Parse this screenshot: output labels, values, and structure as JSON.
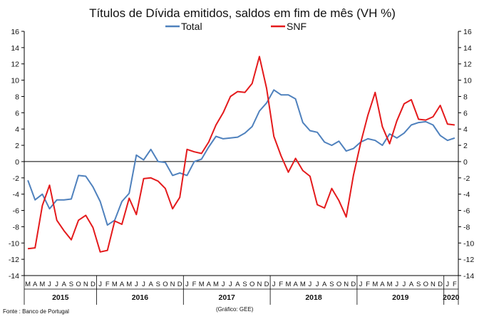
{
  "chart_data": {
    "type": "line",
    "title": "Títulos de Dívida emitidos, saldos em fim de mês  (VH %)",
    "legend_position": "top",
    "ylim": [
      -14,
      16
    ],
    "yticks": [
      -14,
      -12,
      -10,
      -8,
      -6,
      -4,
      -2,
      0,
      2,
      4,
      6,
      8,
      10,
      12,
      14,
      16
    ],
    "y_axes": "both",
    "grid": false,
    "year_groups": [
      {
        "label": "2015",
        "count": 10
      },
      {
        "label": "2016",
        "count": 12
      },
      {
        "label": "2017",
        "count": 12
      },
      {
        "label": "2018",
        "count": 12
      },
      {
        "label": "2019",
        "count": 12
      },
      {
        "label": "2020",
        "count": 2
      }
    ],
    "month_labels": [
      "M",
      "A",
      "M",
      "J",
      "J",
      "A",
      "S",
      "O",
      "N",
      "D",
      "J",
      "F",
      "M",
      "A",
      "M",
      "J",
      "J",
      "A",
      "S",
      "O",
      "N",
      "D",
      "J",
      "F",
      "M",
      "A",
      "M",
      "J",
      "J",
      "A",
      "S",
      "O",
      "N",
      "D",
      "J",
      "F",
      "M",
      "A",
      "M",
      "J",
      "J",
      "A",
      "S",
      "O",
      "N",
      "D",
      "J",
      "F",
      "M",
      "A",
      "M",
      "J",
      "J",
      "A",
      "S",
      "O",
      "N",
      "D",
      "J",
      "F"
    ],
    "series": [
      {
        "name": "Total",
        "color": "#4f81bd",
        "values": [
          -2.3,
          -4.7,
          -4.0,
          -5.8,
          -4.7,
          -4.7,
          -4.6,
          -1.7,
          -1.8,
          -3.1,
          -4.9,
          -7.8,
          -7.2,
          -4.9,
          -3.9,
          0.8,
          0.2,
          1.5,
          0.0,
          -0.1,
          -1.7,
          -1.4,
          -1.7,
          0.0,
          0.3,
          1.8,
          3.1,
          2.8,
          2.9,
          3.0,
          3.5,
          4.3,
          6.2,
          7.2,
          8.8,
          8.2,
          8.2,
          7.7,
          4.8,
          3.8,
          3.6,
          2.4,
          2.0,
          2.5,
          1.3,
          1.6,
          2.4,
          2.8,
          2.6,
          2.0,
          3.4,
          2.9,
          3.5,
          4.5,
          4.8,
          4.9,
          4.5,
          3.2,
          2.6,
          2.9
        ]
      },
      {
        "name": "SNF",
        "color": "#e41a1c",
        "values": [
          -10.7,
          -10.6,
          -5.4,
          -2.9,
          -7.2,
          -8.5,
          -9.6,
          -7.2,
          -6.6,
          -8.1,
          -11.1,
          -10.9,
          -7.3,
          -7.7,
          -4.5,
          -6.5,
          -2.1,
          -2.0,
          -2.4,
          -3.3,
          -5.8,
          -4.4,
          1.5,
          1.2,
          1.0,
          2.4,
          4.5,
          6.0,
          8.0,
          8.6,
          8.5,
          9.6,
          12.9,
          9.0,
          3.1,
          0.7,
          -1.3,
          0.4,
          -1.1,
          -1.8,
          -5.3,
          -5.7,
          -3.3,
          -4.8,
          -6.8,
          -1.7,
          2.3,
          5.7,
          8.5,
          4.3,
          2.2,
          5.0,
          7.1,
          7.6,
          5.2,
          5.1,
          5.5,
          6.9,
          4.6,
          4.5
        ]
      }
    ]
  },
  "footer": {
    "source": "Fonte : Banco de Portugal",
    "credit": "(Gráfico: GEE)"
  }
}
